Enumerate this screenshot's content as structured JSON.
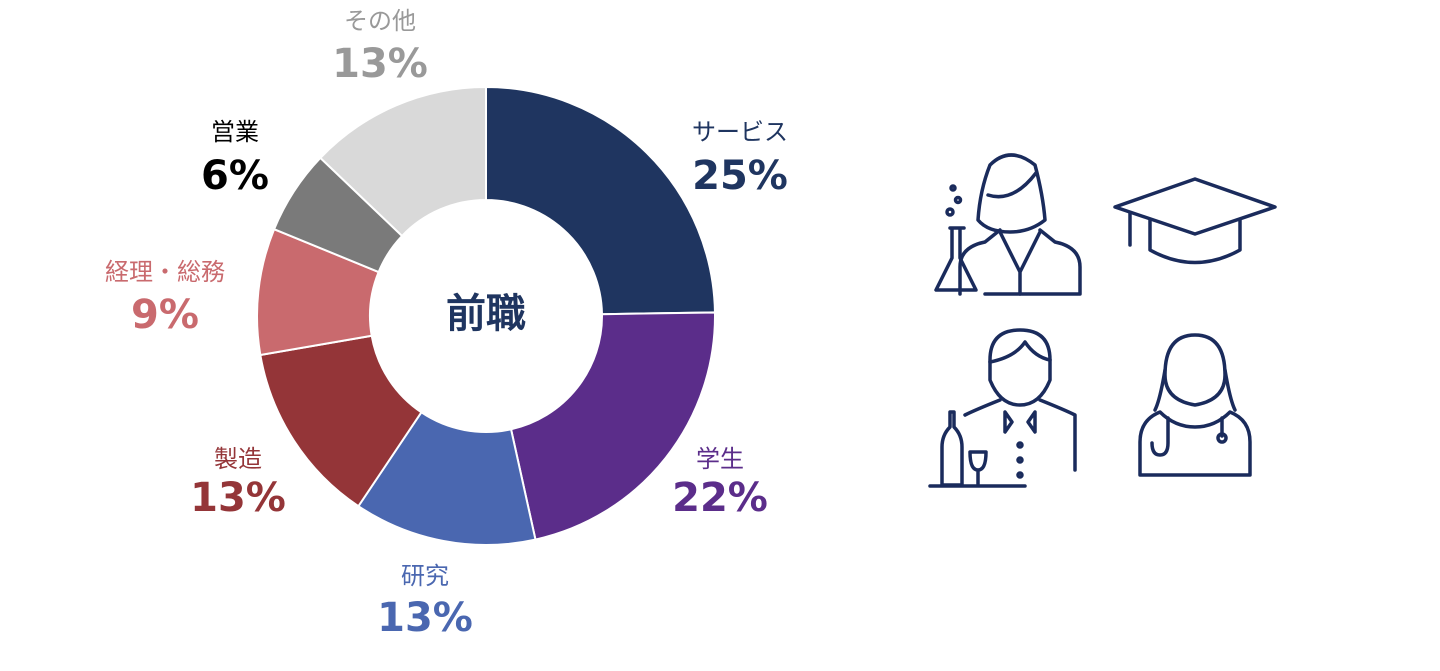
{
  "chart_data": {
    "type": "donut",
    "center_label": "前職",
    "categories": [
      "サービス",
      "学生",
      "研究",
      "製造",
      "経理・総務",
      "営業",
      "その他"
    ],
    "values": [
      25,
      22,
      13,
      13,
      9,
      6,
      13
    ],
    "value_labels": [
      "25%",
      "22%",
      "13%",
      "13%",
      "9%",
      "6%",
      "13%"
    ],
    "colors": [
      "#1f3560",
      "#5b2d8a",
      "#4a67b0",
      "#943538",
      "#c96a6e",
      "#7a7a7a",
      "#d9d9d9"
    ],
    "label_colors": [
      "#1f3560",
      "#5b2d8a",
      "#4a67b0",
      "#943538",
      "#c96a6e",
      "#000000",
      "#999999"
    ]
  }
}
